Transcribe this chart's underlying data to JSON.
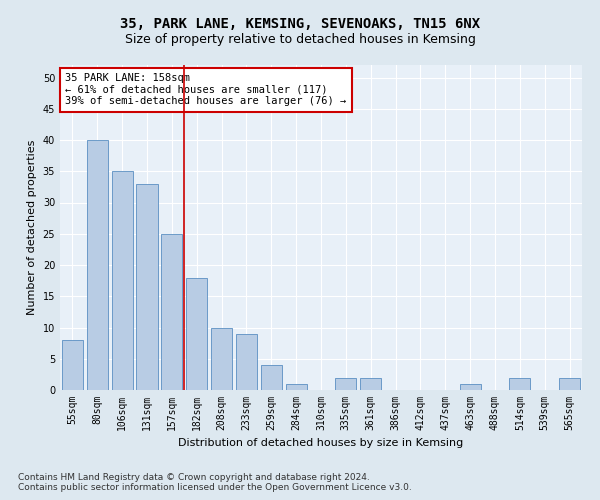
{
  "title": "35, PARK LANE, KEMSING, SEVENOAKS, TN15 6NX",
  "subtitle": "Size of property relative to detached houses in Kemsing",
  "xlabel": "Distribution of detached houses by size in Kemsing",
  "ylabel": "Number of detached properties",
  "categories": [
    "55sqm",
    "80sqm",
    "106sqm",
    "131sqm",
    "157sqm",
    "182sqm",
    "208sqm",
    "233sqm",
    "259sqm",
    "284sqm",
    "310sqm",
    "335sqm",
    "361sqm",
    "386sqm",
    "412sqm",
    "437sqm",
    "463sqm",
    "488sqm",
    "514sqm",
    "539sqm",
    "565sqm"
  ],
  "values": [
    8,
    40,
    35,
    33,
    25,
    18,
    10,
    9,
    4,
    1,
    0,
    2,
    2,
    0,
    0,
    0,
    1,
    0,
    2,
    0,
    2
  ],
  "bar_color": "#b8cce4",
  "bar_edge_color": "#5a8fc2",
  "vline_x": 4.5,
  "vline_color": "#cc0000",
  "annotation_title": "35 PARK LANE: 158sqm",
  "annotation_line1": "← 61% of detached houses are smaller (117)",
  "annotation_line2": "39% of semi-detached houses are larger (76) →",
  "annotation_box_color": "#ffffff",
  "annotation_border_color": "#cc0000",
  "ylim": [
    0,
    52
  ],
  "yticks": [
    0,
    5,
    10,
    15,
    20,
    25,
    30,
    35,
    40,
    45,
    50
  ],
  "footnote1": "Contains HM Land Registry data © Crown copyright and database right 2024.",
  "footnote2": "Contains public sector information licensed under the Open Government Licence v3.0.",
  "bg_color": "#dde8f0",
  "plot_bg_color": "#e8f0f8",
  "grid_color": "#ffffff",
  "title_fontsize": 10,
  "subtitle_fontsize": 9,
  "axis_label_fontsize": 8,
  "tick_fontsize": 7,
  "annotation_fontsize": 7.5,
  "footnote_fontsize": 6.5
}
